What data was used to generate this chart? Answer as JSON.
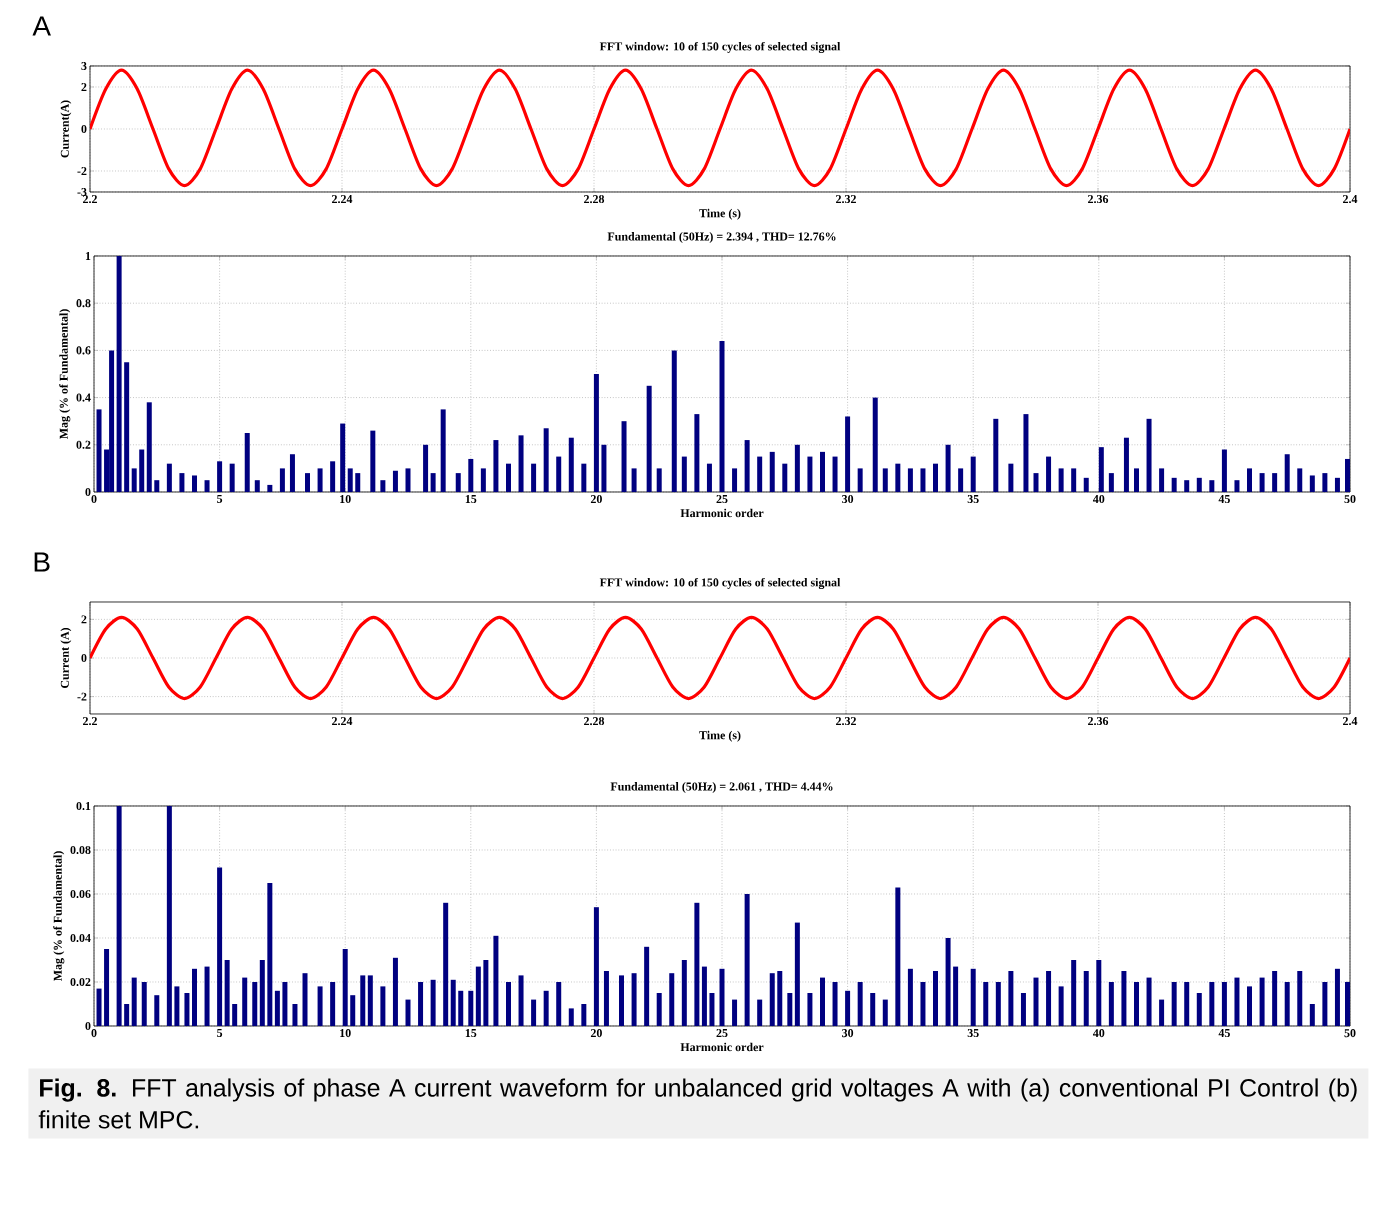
{
  "chart_data": [
    {
      "type": "line",
      "title": "FFT window: 10 of 150 cycles of selected signal",
      "xlabel": "Time (s)",
      "ylabel": "Current(A)",
      "annotations": [
        "A"
      ],
      "grid": true,
      "xlim": [
        2.2,
        2.4
      ],
      "ylim": [
        -3,
        3
      ],
      "xticks": [
        2.2,
        2.24,
        2.28,
        2.32,
        2.36,
        2.4
      ],
      "yticks": [
        -3,
        -2,
        0,
        2,
        3
      ],
      "x": [
        2.2,
        2.2025,
        2.205,
        2.2075,
        2.21,
        2.2125,
        2.215,
        2.2175,
        2.22,
        2.2225,
        2.225,
        2.2275,
        2.23,
        2.2325,
        2.235,
        2.2375,
        2.24,
        2.2425,
        2.245,
        2.2475,
        2.25,
        2.2525,
        2.255,
        2.2575,
        2.26,
        2.2625,
        2.265,
        2.2675,
        2.27,
        2.2725,
        2.275,
        2.2775,
        2.28,
        2.2825,
        2.285,
        2.2875,
        2.29,
        2.2925,
        2.295,
        2.2975,
        2.3,
        2.3025,
        2.305,
        2.3075,
        2.31,
        2.3125,
        2.315,
        2.3175,
        2.32,
        2.3225,
        2.325,
        2.3275,
        2.33,
        2.3325,
        2.335,
        2.3375,
        2.34,
        2.3425,
        2.345,
        2.3475,
        2.35,
        2.3525,
        2.355,
        2.3575,
        2.36,
        2.3625,
        2.365,
        2.3675,
        2.37,
        2.3725,
        2.375,
        2.3775,
        2.38,
        2.3825,
        2.385,
        2.3875,
        2.39,
        2.3925,
        2.395,
        2.3975,
        2.4
      ],
      "series": [
        {
          "color": "#ff0000",
          "values": [
            0,
            1.9,
            2.8,
            1.9,
            0,
            -1.9,
            -2.7,
            -1.9,
            0,
            1.9,
            2.8,
            1.9,
            0,
            -1.9,
            -2.7,
            -1.9,
            0,
            1.9,
            2.8,
            1.9,
            0,
            -1.9,
            -2.7,
            -1.9,
            0,
            1.9,
            2.8,
            1.9,
            0,
            -1.9,
            -2.7,
            -1.9,
            0,
            1.9,
            2.8,
            1.9,
            0,
            -1.9,
            -2.7,
            -1.9,
            0,
            1.9,
            2.8,
            1.9,
            0,
            -1.9,
            -2.7,
            -1.9,
            0,
            1.9,
            2.8,
            1.9,
            0,
            -1.9,
            -2.7,
            -1.9,
            0,
            1.9,
            2.8,
            1.9,
            0,
            -1.9,
            -2.7,
            -1.9,
            0,
            1.9,
            2.8,
            1.9,
            0,
            -1.9,
            -2.7,
            -1.9,
            0,
            1.9,
            2.8,
            1.9,
            0,
            -1.9,
            -2.7,
            -1.9,
            0
          ]
        }
      ]
    },
    {
      "type": "bar",
      "title": "Fundamental (50Hz) = 2.394 , THD= 12.76%",
      "xlabel": "Harmonic order",
      "ylabel": "Mag (% of Fundamental)",
      "grid": true,
      "xlim": [
        0,
        50
      ],
      "ylim": [
        0,
        1
      ],
      "xticks": [
        0,
        5,
        10,
        15,
        20,
        25,
        30,
        35,
        40,
        45,
        50
      ],
      "yticks": [
        0,
        0.2,
        0.4,
        0.6,
        0.8,
        1
      ],
      "x": [
        0.2,
        0.5,
        0.7,
        1,
        1.3,
        1.6,
        1.9,
        2.2,
        2.5,
        3,
        3.5,
        4,
        4.5,
        5,
        5.5,
        6.1,
        6.5,
        7,
        7.5,
        7.9,
        8.5,
        9,
        9.5,
        9.9,
        10.2,
        10.5,
        11.1,
        11.5,
        12,
        12.5,
        13.2,
        13.5,
        13.9,
        14.5,
        15,
        15.5,
        16,
        16.5,
        17,
        17.5,
        18,
        18.5,
        19,
        19.5,
        20,
        20.3,
        21.1,
        21.5,
        22.1,
        22.5,
        23.1,
        23.5,
        24,
        24.5,
        25,
        25.5,
        26,
        26.5,
        27,
        27.5,
        28,
        28.5,
        29,
        29.5,
        30,
        30.5,
        31.1,
        31.5,
        32,
        32.5,
        33,
        33.5,
        34,
        34.5,
        35,
        35.9,
        36.5,
        37.1,
        37.5,
        38,
        38.5,
        39,
        39.5,
        40.1,
        40.5,
        41.1,
        41.5,
        42,
        42.5,
        43,
        43.5,
        44,
        44.5,
        45,
        45.5,
        46,
        46.5,
        47,
        47.5,
        48,
        48.5,
        49,
        49.5,
        49.9
      ],
      "series": [
        {
          "color": "#000080",
          "values": [
            0.35,
            0.18,
            0.6,
            1,
            0.55,
            0.1,
            0.18,
            0.38,
            0.05,
            0.12,
            0.08,
            0.07,
            0.05,
            0.13,
            0.12,
            0.25,
            0.05,
            0.03,
            0.1,
            0.16,
            0.08,
            0.1,
            0.13,
            0.29,
            0.1,
            0.08,
            0.26,
            0.05,
            0.09,
            0.1,
            0.2,
            0.08,
            0.35,
            0.08,
            0.14,
            0.1,
            0.22,
            0.12,
            0.24,
            0.12,
            0.27,
            0.15,
            0.23,
            0.12,
            0.5,
            0.2,
            0.3,
            0.1,
            0.45,
            0.1,
            0.6,
            0.15,
            0.33,
            0.12,
            0.64,
            0.1,
            0.22,
            0.15,
            0.17,
            0.12,
            0.2,
            0.15,
            0.17,
            0.15,
            0.32,
            0.1,
            0.4,
            0.1,
            0.12,
            0.1,
            0.1,
            0.12,
            0.2,
            0.1,
            0.15,
            0.31,
            0.12,
            0.33,
            0.08,
            0.15,
            0.1,
            0.1,
            0.06,
            0.19,
            0.08,
            0.23,
            0.1,
            0.31,
            0.1,
            0.06,
            0.05,
            0.06,
            0.05,
            0.18,
            0.05,
            0.1,
            0.08,
            0.08,
            0.16,
            0.1,
            0.07,
            0.08,
            0.06,
            0.14
          ]
        }
      ]
    },
    {
      "type": "line",
      "title": "FFT window: 10 of 150 cycles of selected signal",
      "xlabel": "Time (s)",
      "ylabel": "Current (A)",
      "annotations": [
        "B"
      ],
      "grid": true,
      "xlim": [
        2.2,
        2.4
      ],
      "ylim": [
        -2.9,
        2.9
      ],
      "xticks": [
        2.2,
        2.24,
        2.28,
        2.32,
        2.36,
        2.4
      ],
      "yticks": [
        -2,
        0,
        2
      ],
      "x": [
        2.2,
        2.2025,
        2.205,
        2.2075,
        2.21,
        2.2125,
        2.215,
        2.2175,
        2.22,
        2.2225,
        2.225,
        2.2275,
        2.23,
        2.2325,
        2.235,
        2.2375,
        2.24,
        2.2425,
        2.245,
        2.2475,
        2.25,
        2.2525,
        2.255,
        2.2575,
        2.26,
        2.2625,
        2.265,
        2.2675,
        2.27,
        2.2725,
        2.275,
        2.2775,
        2.28,
        2.2825,
        2.285,
        2.2875,
        2.29,
        2.2925,
        2.295,
        2.2975,
        2.3,
        2.3025,
        2.305,
        2.3075,
        2.31,
        2.3125,
        2.315,
        2.3175,
        2.32,
        2.3225,
        2.325,
        2.3275,
        2.33,
        2.3325,
        2.335,
        2.3375,
        2.34,
        2.3425,
        2.345,
        2.3475,
        2.35,
        2.3525,
        2.355,
        2.3575,
        2.36,
        2.3625,
        2.365,
        2.3675,
        2.37,
        2.3725,
        2.375,
        2.3775,
        2.38,
        2.3825,
        2.385,
        2.3875,
        2.39,
        2.3925,
        2.395,
        2.3975,
        2.4
      ],
      "series": [
        {
          "color": "#ff0000",
          "values": [
            0,
            1.5,
            2.1,
            1.5,
            0,
            -1.5,
            -2.1,
            -1.5,
            0,
            1.5,
            2.1,
            1.5,
            0,
            -1.5,
            -2.1,
            -1.5,
            0,
            1.5,
            2.1,
            1.5,
            0,
            -1.5,
            -2.1,
            -1.5,
            0,
            1.5,
            2.1,
            1.5,
            0,
            -1.5,
            -2.1,
            -1.5,
            0,
            1.5,
            2.1,
            1.5,
            0,
            -1.5,
            -2.1,
            -1.5,
            0,
            1.5,
            2.1,
            1.5,
            0,
            -1.5,
            -2.1,
            -1.5,
            0,
            1.5,
            2.1,
            1.5,
            0,
            -1.5,
            -2.1,
            -1.5,
            0,
            1.5,
            2.1,
            1.5,
            0,
            -1.5,
            -2.1,
            -1.5,
            0,
            1.5,
            2.1,
            1.5,
            0,
            -1.5,
            -2.1,
            -1.5,
            0,
            1.5,
            2.1,
            1.5,
            0,
            -1.5,
            -2.1,
            -1.5,
            0
          ]
        }
      ]
    },
    {
      "type": "bar",
      "title": "Fundamental (50Hz) = 2.061 , THD= 4.44%",
      "xlabel": "Harmonic order",
      "ylabel": "Mag (% of Fundamental)",
      "annotations": [
        "**Fig. 8.** FFT analysis of phase A current waveform for unbalanced grid voltages A with (a) conventional PI Control (b) finite set MPC."
      ],
      "grid": true,
      "xlim": [
        0,
        50
      ],
      "ylim": [
        0,
        0.1
      ],
      "xticks": [
        0,
        5,
        10,
        15,
        20,
        25,
        30,
        35,
        40,
        45,
        50
      ],
      "yticks": [
        0,
        0.02,
        0.04,
        0.06,
        0.08,
        0.1
      ],
      "x": [
        0.2,
        0.5,
        1,
        1.3,
        1.6,
        2,
        2.5,
        3,
        3.3,
        3.7,
        4,
        4.5,
        5,
        5.3,
        5.6,
        6,
        6.4,
        6.7,
        7,
        7.3,
        7.6,
        8,
        8.4,
        9,
        9.5,
        10,
        10.3,
        10.7,
        11,
        11.5,
        12,
        12.5,
        13,
        13.5,
        14,
        14.3,
        14.6,
        15,
        15.3,
        15.6,
        16,
        16.5,
        17,
        17.5,
        18,
        18.5,
        19,
        19.5,
        20,
        20.4,
        21,
        21.5,
        22,
        22.5,
        23,
        23.5,
        24,
        24.3,
        24.6,
        25,
        25.5,
        26,
        26.5,
        27,
        27.3,
        27.7,
        28,
        28.5,
        29,
        29.5,
        30,
        30.5,
        31,
        31.5,
        32,
        32.5,
        33,
        33.5,
        34,
        34.3,
        35,
        35.5,
        36,
        36.5,
        37,
        37.5,
        38,
        38.5,
        39,
        39.5,
        40,
        40.5,
        41,
        41.5,
        42,
        42.5,
        43,
        43.5,
        44,
        44.5,
        45,
        45.5,
        46,
        46.5,
        47,
        47.5,
        48,
        48.5,
        49,
        49.5,
        49.9
      ],
      "series": [
        {
          "color": "#000080",
          "values": [
            0.017,
            0.035,
            0.1,
            0.01,
            0.022,
            0.02,
            0.014,
            0.1,
            0.018,
            0.015,
            0.026,
            0.027,
            0.072,
            0.03,
            0.01,
            0.022,
            0.02,
            0.03,
            0.065,
            0.016,
            0.02,
            0.01,
            0.024,
            0.018,
            0.02,
            0.035,
            0.014,
            0.023,
            0.023,
            0.018,
            0.031,
            0.012,
            0.02,
            0.021,
            0.056,
            0.021,
            0.016,
            0.016,
            0.027,
            0.03,
            0.041,
            0.02,
            0.023,
            0.012,
            0.016,
            0.02,
            0.008,
            0.01,
            0.054,
            0.025,
            0.023,
            0.024,
            0.036,
            0.015,
            0.024,
            0.03,
            0.056,
            0.027,
            0.015,
            0.026,
            0.012,
            0.06,
            0.012,
            0.024,
            0.025,
            0.015,
            0.047,
            0.015,
            0.022,
            0.02,
            0.016,
            0.02,
            0.015,
            0.012,
            0.063,
            0.026,
            0.02,
            0.025,
            0.04,
            0.027,
            0.026,
            0.02,
            0.02,
            0.025,
            0.015,
            0.022,
            0.025,
            0.018,
            0.03,
            0.025,
            0.03,
            0.02,
            0.025,
            0.02,
            0.022,
            0.012,
            0.02,
            0.02,
            0.015,
            0.02,
            0.02,
            0.022,
            0.018,
            0.022,
            0.025,
            0.02,
            0.025,
            0.01,
            0.02,
            0.026,
            0.02
          ]
        }
      ]
    }
  ]
}
